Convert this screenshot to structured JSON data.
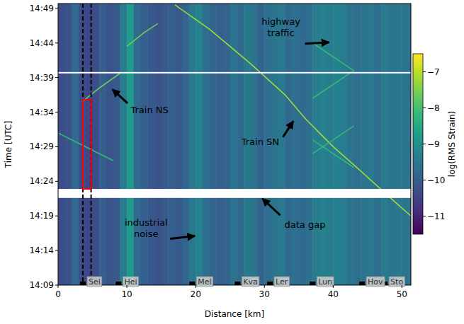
{
  "chart_data": {
    "type": "heatmap",
    "x_label": "Distance [km]",
    "y_label": "Time [UTC]",
    "xlim": [
      0,
      51.3
    ],
    "xticks": [
      0,
      10,
      20,
      30,
      40,
      50
    ],
    "ylim": [
      849,
      889.7
    ],
    "yticks": [
      {
        "value": 849,
        "label": "14:09"
      },
      {
        "value": 854,
        "label": "14:14"
      },
      {
        "value": 859,
        "label": "14:19"
      },
      {
        "value": 864,
        "label": "14:24"
      },
      {
        "value": 869,
        "label": "14:29"
      },
      {
        "value": 874,
        "label": "14:34"
      },
      {
        "value": 879,
        "label": "14:39"
      },
      {
        "value": 884,
        "label": "14:44"
      },
      {
        "value": 889,
        "label": "14:49"
      }
    ],
    "colorbar": {
      "label": "log(RMS Strain)",
      "range": [
        -11.5,
        -6.5
      ],
      "ticks": [
        {
          "value": -7,
          "label": "−7"
        },
        {
          "value": -8,
          "label": "−8"
        },
        {
          "value": -9,
          "label": "−9"
        },
        {
          "value": -10,
          "label": "−10"
        },
        {
          "value": -11,
          "label": "−11"
        }
      ]
    },
    "cells": {
      "x_edges": [
        0,
        1,
        2,
        3,
        4,
        5,
        6,
        7,
        8,
        9,
        10,
        11,
        12,
        13,
        14,
        15,
        16,
        17,
        18,
        19,
        20,
        21,
        22,
        23,
        24,
        25,
        26,
        27,
        28,
        29,
        30,
        31,
        32,
        33,
        34,
        35,
        36,
        37,
        38,
        39,
        40,
        41,
        42,
        43,
        44,
        45,
        46,
        47,
        48,
        49,
        50,
        51,
        52
      ],
      "values": [
        -10.3,
        -10.2,
        -9.8,
        -10.3,
        -10.4,
        -10.3,
        -10.0,
        -10.2,
        -10.1,
        -9.4,
        -8.8,
        -9.8,
        -10.0,
        -10.1,
        -10.2,
        -10.1,
        -10.0,
        -10.1,
        -9.9,
        -9.5,
        -9.3,
        -9.7,
        -9.9,
        -10.0,
        -9.9,
        -9.6,
        -9.8,
        -9.5,
        -9.6,
        -9.9,
        -9.7,
        -9.6,
        -9.5,
        -9.8,
        -9.7,
        -9.8,
        -9.7,
        -9.4,
        -9.3,
        -9.4,
        -9.3,
        -9.4,
        -9.6,
        -9.7,
        -9.6,
        -9.5,
        -9.7,
        -9.4,
        -9.6,
        -9.5,
        -9.6,
        -9.7
      ]
    },
    "series": [
      {
        "color": "#a0da39",
        "x": [
          17,
          22,
          28,
          33,
          36,
          40,
          44,
          49,
          51.3
        ],
        "values": [
          889.5,
          886,
          881,
          876.5,
          873,
          869,
          865.5,
          861,
          859
        ]
      },
      {
        "color": "#6ece58",
        "x": [
          3.5,
          6,
          9
        ],
        "values": [
          875.5,
          877.5,
          879.6
        ]
      },
      {
        "color": "#6ece58",
        "x": [
          10,
          12.5,
          14.5
        ],
        "values": [
          883.5,
          885.5,
          886.8
        ]
      },
      {
        "color": "#35b779",
        "x": [
          0,
          4,
          8
        ],
        "values": [
          871,
          869,
          867
        ]
      },
      {
        "color": "#35b779",
        "x": [
          37,
          43
        ],
        "values": [
          876,
          880
        ]
      },
      {
        "color": "#35b779",
        "x": [
          37,
          43
        ],
        "values": [
          868,
          872
        ]
      },
      {
        "color": "#35b779",
        "x": [
          43,
          37
        ],
        "values": [
          880,
          884
        ]
      },
      {
        "color": "#35b779",
        "x": [
          43,
          37
        ],
        "values": [
          866,
          870
        ]
      }
    ],
    "data_gaps": [
      [
        861.6,
        862.9
      ],
      [
        879.6,
        879.8
      ]
    ],
    "vlines": [
      {
        "x": 3.6,
        "color": "#000000",
        "line_style": "dashed"
      },
      {
        "x": 4.8,
        "color": "#000000",
        "line_style": "dashed"
      }
    ],
    "box": {
      "x": [
        3.6,
        4.8
      ],
      "y": [
        862.9,
        875.8
      ],
      "color": "#ff0000"
    },
    "stations": [
      {
        "label": "Sel",
        "x": 3.6
      },
      {
        "label": "Hei",
        "x": 8.8
      },
      {
        "label": "Mel",
        "x": 19.5
      },
      {
        "label": "Kva",
        "x": 26.1
      },
      {
        "label": "Ler",
        "x": 30.8
      },
      {
        "label": "Lun",
        "x": 37.0
      },
      {
        "label": "Hov",
        "x": 44.2
      },
      {
        "label": "Sto",
        "x": 47.5
      }
    ],
    "annotations": [
      {
        "text": "highway\ntraffic",
        "x": 32.4,
        "y": 886.6,
        "arrow": [
          [
            35.9,
            883.9
          ],
          [
            39.4,
            884.1
          ]
        ]
      },
      {
        "text": "Train NS",
        "x": 13.3,
        "y": 873.8,
        "arrow": [
          [
            10.1,
            875.3
          ],
          [
            7.9,
            877.3
          ]
        ]
      },
      {
        "text": "Train SN",
        "x": 29.4,
        "y": 869.2,
        "arrow": [
          [
            32.7,
            870.4
          ],
          [
            34.2,
            872.7
          ]
        ]
      },
      {
        "text": "data gap",
        "x": 35.9,
        "y": 857.3,
        "arrow": [
          [
            32.3,
            859.1
          ],
          [
            29.7,
            861.5
          ]
        ]
      },
      {
        "text": "industrial\nnoise",
        "x": 12.8,
        "y": 857.6,
        "arrow": [
          [
            16.3,
            855.7
          ],
          [
            19.9,
            856.1
          ]
        ]
      }
    ]
  }
}
